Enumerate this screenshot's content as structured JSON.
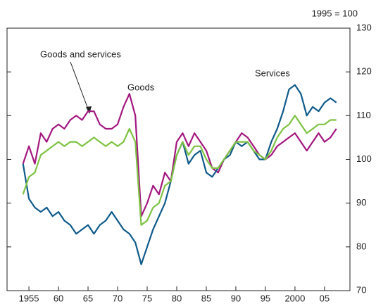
{
  "chart_data": {
    "type": "line",
    "annotation": "1995 = 100",
    "x": [
      1954,
      1955,
      1956,
      1957,
      1958,
      1959,
      1960,
      1961,
      1962,
      1963,
      1964,
      1965,
      1966,
      1967,
      1968,
      1969,
      1970,
      1971,
      1972,
      1973,
      1974,
      1975,
      1976,
      1977,
      1978,
      1979,
      1980,
      1981,
      1982,
      1983,
      1984,
      1985,
      1986,
      1987,
      1988,
      1989,
      1990,
      1991,
      1992,
      1993,
      1994,
      1995,
      1996,
      1997,
      1998,
      1999,
      2000,
      2001,
      2002,
      2003,
      2004,
      2005,
      2006,
      2007
    ],
    "series": [
      {
        "name": "Goods",
        "color": "#a3177f",
        "values": [
          99,
          103,
          99,
          106,
          104,
          107,
          108,
          107,
          109,
          110,
          109,
          111,
          111,
          108,
          107,
          107,
          108,
          112,
          115,
          110,
          87,
          90,
          94,
          92,
          97,
          95,
          104,
          106,
          103,
          106,
          104,
          102,
          98,
          97,
          100,
          102,
          104,
          106,
          105,
          103,
          101,
          100,
          101,
          103,
          104,
          105,
          106,
          104,
          102,
          104,
          106,
          104,
          105,
          107
        ]
      },
      {
        "name": "Services",
        "color": "#0f5a8a",
        "values": [
          99,
          91,
          89,
          88,
          89,
          87,
          88,
          86,
          85,
          83,
          84,
          85,
          83,
          85,
          86,
          88,
          86,
          84,
          83,
          81,
          76,
          80,
          84,
          87,
          90,
          95,
          101,
          104,
          99,
          101,
          102,
          97,
          96,
          98,
          100,
          101,
          104,
          103,
          104,
          102,
          100,
          100,
          104,
          107,
          111,
          116,
          117,
          115,
          110,
          112,
          111,
          113,
          114,
          113
        ]
      },
      {
        "name": "Goods and services",
        "color": "#7dc242",
        "values": [
          92,
          96,
          97,
          101,
          102,
          103,
          104,
          103,
          104,
          104,
          103,
          104,
          105,
          104,
          103,
          104,
          103,
          104,
          107,
          104,
          85,
          86,
          89,
          90,
          94,
          95,
          101,
          104,
          101,
          103,
          103,
          100,
          98,
          98,
          100,
          102,
          104,
          104,
          104,
          102,
          101,
          100,
          102,
          105,
          107,
          108,
          110,
          108,
          106,
          107,
          108,
          108,
          109,
          109
        ]
      }
    ],
    "xlim": [
      1951.3,
      2009.3
    ],
    "xticks": [
      {
        "value": 1955,
        "label": "1955"
      },
      {
        "value": 1960,
        "label": "60"
      },
      {
        "value": 1965,
        "label": "65"
      },
      {
        "value": 1970,
        "label": "70"
      },
      {
        "value": 1975,
        "label": "75"
      },
      {
        "value": 1980,
        "label": "80"
      },
      {
        "value": 1985,
        "label": "85"
      },
      {
        "value": 1990,
        "label": "90"
      },
      {
        "value": 1995,
        "label": "95"
      },
      {
        "value": 2000,
        "label": "2000"
      },
      {
        "value": 2005,
        "label": "05"
      }
    ],
    "ylim": [
      70,
      130
    ],
    "yticks": [
      70,
      80,
      90,
      100,
      110,
      120,
      130
    ]
  }
}
